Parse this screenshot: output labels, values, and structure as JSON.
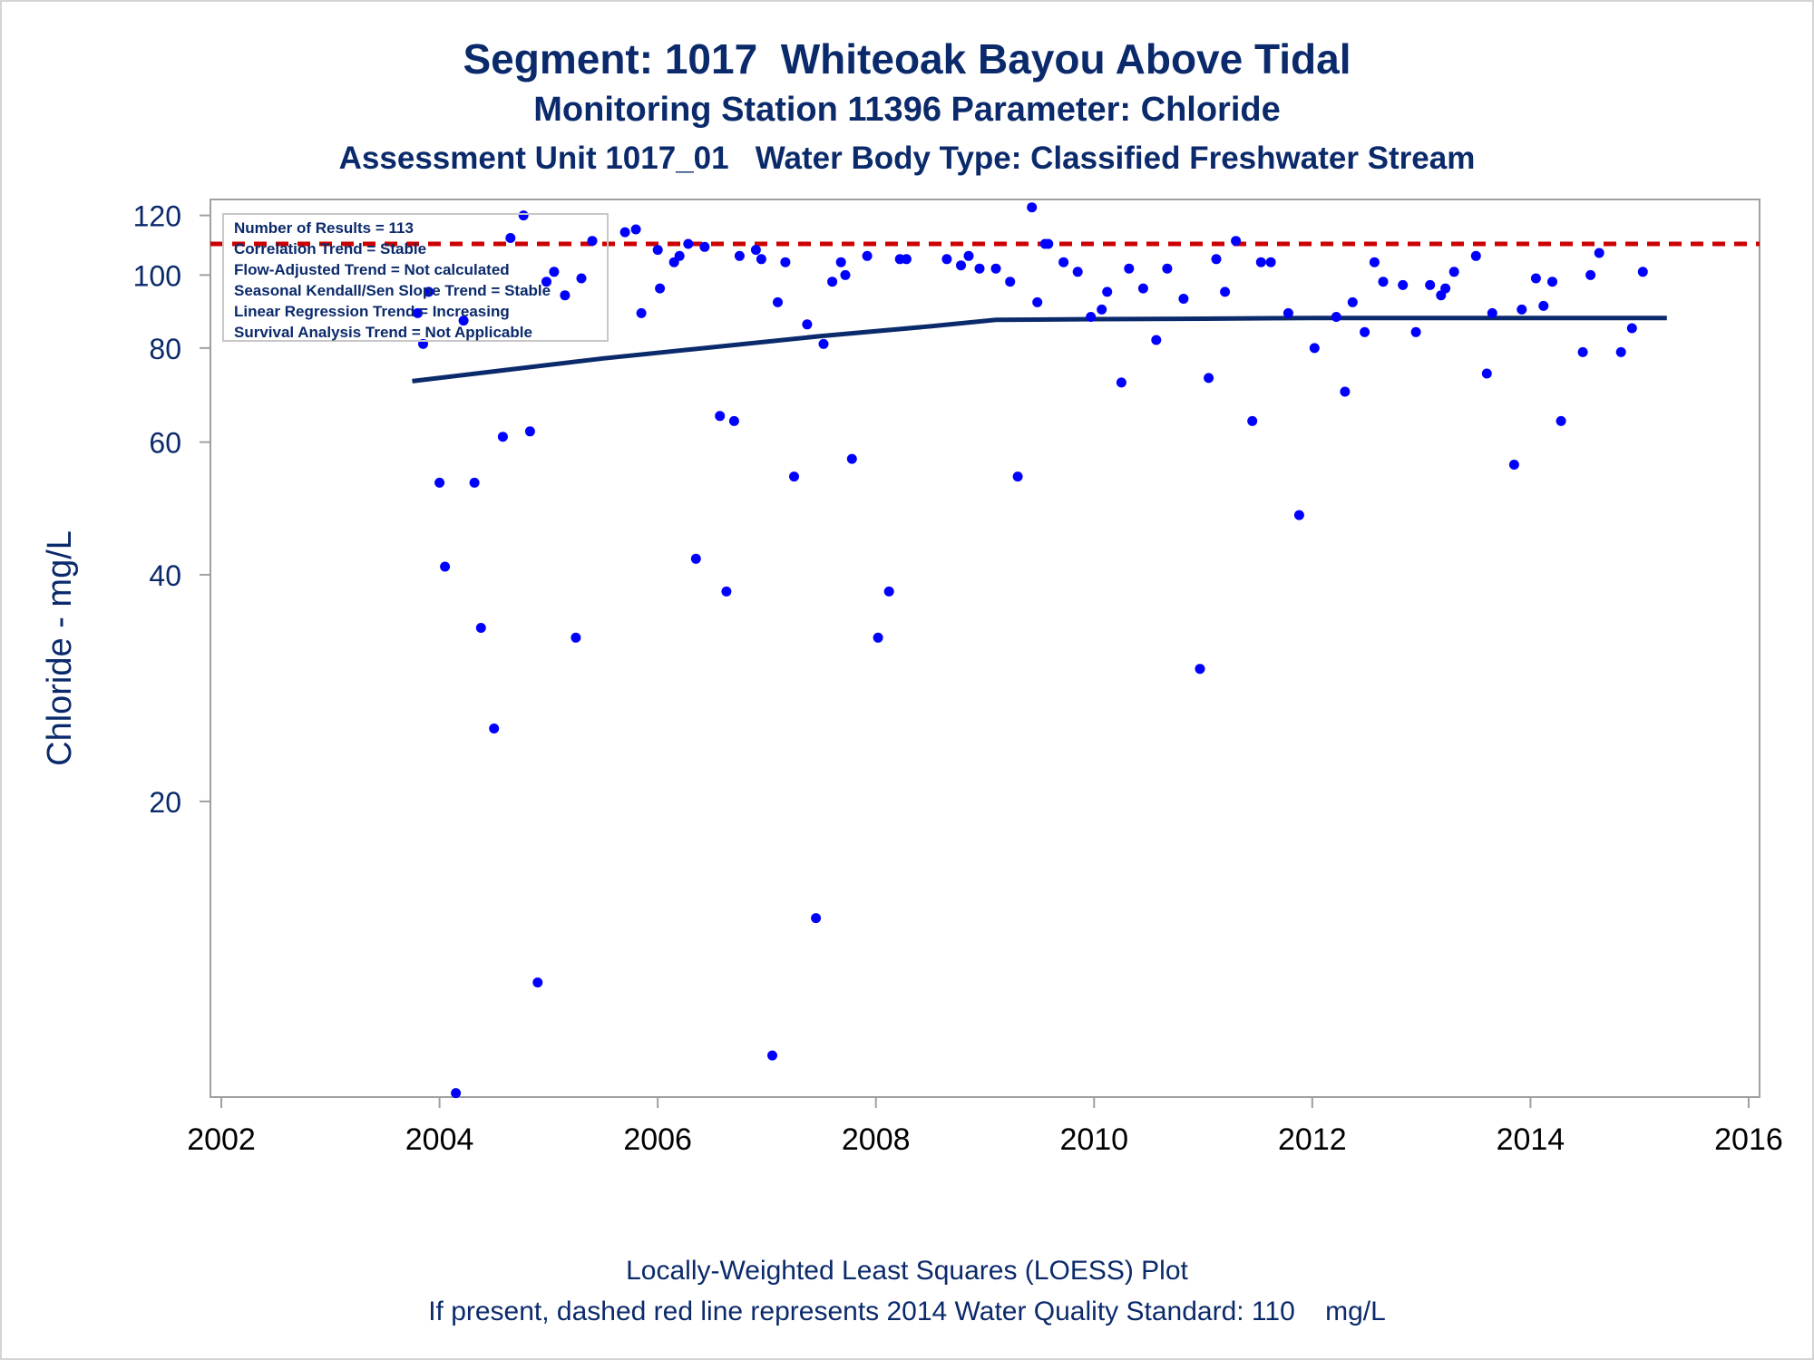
{
  "titles": {
    "line1": "Segment: 1017  Whiteoak Bayou Above Tidal",
    "line2": "Monitoring Station 11396 Parameter: Chloride",
    "line3": "Assessment Unit 1017_01   Water Body Type: Classified Freshwater Stream"
  },
  "footnotes": {
    "line1": "Locally-Weighted Least Squares (LOESS) Plot",
    "line2": "If present, dashed red line represents 2014 Water Quality Standard: 110    mg/L"
  },
  "stats_box": [
    "Number of Results = 113",
    "Correlation Trend = Stable",
    "Flow-Adjusted Trend = Not calculated",
    "Seasonal Kendall/Sen Slope Trend = Stable",
    "Linear Regression Trend = Increasing",
    "Survival Analysis Trend = Not Applicable"
  ],
  "colors": {
    "text": "#0b2a6b",
    "points": "#0000ff",
    "loess": "#0b2a6b",
    "standard": "#cc0000",
    "axis": "#a0a0a0"
  },
  "chart_data": {
    "type": "scatter",
    "ylabel": "Chloride - mg/L",
    "xlabel": "",
    "y_scale": "log",
    "xlim": [
      2001.9,
      2016.1
    ],
    "ylim": [
      8.1,
      126
    ],
    "x_ticks": [
      2002,
      2004,
      2006,
      2008,
      2010,
      2012,
      2014,
      2016
    ],
    "y_ticks": [
      20,
      40,
      60,
      80,
      100,
      120
    ],
    "standard_line": {
      "value": 110,
      "style": "dashed"
    },
    "loess": {
      "x": [
        2003.75,
        2004.5,
        2005.5,
        2006.5,
        2007.5,
        2008.5,
        2009.1,
        2010.0,
        2011.0,
        2012.0,
        2013.0,
        2014.0,
        2015.0,
        2015.25
      ],
      "y": [
        72.3,
        74.5,
        77.5,
        80.2,
        83.0,
        85.5,
        87.2,
        87.4,
        87.5,
        87.7,
        87.7,
        87.7,
        87.7,
        87.7
      ]
    },
    "series": [
      {
        "x": [
          2003.8,
          2003.85,
          2003.9,
          2004.0,
          2004.05,
          2004.15,
          2004.22,
          2004.32,
          2004.38,
          2004.5,
          2004.58,
          2004.65,
          2004.77,
          2004.83,
          2004.9,
          2004.98,
          2005.05,
          2005.15,
          2005.25,
          2005.3,
          2005.4,
          2005.7,
          2005.8,
          2005.85,
          2006.0,
          2006.02,
          2006.15,
          2006.2,
          2006.28,
          2006.35,
          2006.43,
          2006.57,
          2006.63,
          2006.7,
          2006.75,
          2006.9,
          2006.95,
          2007.05,
          2007.1,
          2007.17,
          2007.25,
          2007.37,
          2007.45,
          2007.52,
          2007.6,
          2007.68,
          2007.72,
          2007.78,
          2007.92,
          2008.02,
          2008.12,
          2008.22,
          2008.28,
          2008.65,
          2008.78,
          2008.85,
          2008.95,
          2009.1,
          2009.23,
          2009.3,
          2009.43,
          2009.48,
          2009.55,
          2009.58,
          2009.72,
          2009.85,
          2009.97,
          2010.07,
          2010.12,
          2010.25,
          2010.32,
          2010.45,
          2010.57,
          2010.67,
          2010.82,
          2010.97,
          2011.05,
          2011.12,
          2011.2,
          2011.3,
          2011.45,
          2011.53,
          2011.62,
          2011.78,
          2011.88,
          2012.02,
          2012.22,
          2012.3,
          2012.37,
          2012.48,
          2012.57,
          2012.65,
          2012.83,
          2012.95,
          2013.08,
          2013.18,
          2013.22,
          2013.3,
          2013.5,
          2013.6,
          2013.65,
          2013.85,
          2013.92,
          2014.05,
          2014.12,
          2014.2,
          2014.28,
          2014.48,
          2014.55,
          2014.63,
          2014.83,
          2014.93,
          2015.03
        ],
        "y": [
          89,
          81,
          95,
          53,
          41,
          8.2,
          87,
          53,
          34,
          25,
          61,
          112,
          120,
          62,
          11.5,
          98,
          101,
          94,
          33,
          99,
          111,
          114,
          115,
          89,
          108,
          96,
          104,
          106,
          110,
          42,
          109,
          65,
          38,
          64,
          106,
          108,
          105,
          9.2,
          92,
          104,
          54,
          86,
          14,
          81,
          98,
          104,
          100,
          57,
          106,
          33,
          38,
          105,
          105,
          105,
          103,
          106,
          102,
          102,
          98,
          54,
          123,
          92,
          110,
          110,
          104,
          101,
          88,
          90,
          95,
          72,
          102,
          96,
          82,
          102,
          93,
          30,
          73,
          105,
          95,
          111,
          64,
          104,
          104,
          89,
          48,
          80,
          88,
          70,
          92,
          84,
          104,
          98,
          97,
          84,
          97,
          94,
          96,
          101,
          106,
          74,
          89,
          56,
          90,
          99,
          91,
          98,
          64,
          79,
          100,
          107,
          79,
          85,
          101
        ]
      }
    ]
  }
}
